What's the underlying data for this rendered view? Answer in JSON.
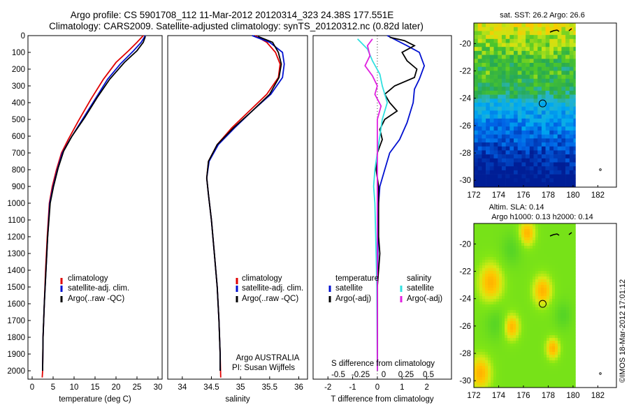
{
  "titles": {
    "line1": "Argo profile: CS 5901708_112 11-Mar-2012 20120314_323 24.38S 177.551E",
    "line2": "Climatology: CARS2009. Satellite-adjusted climatology: synTS_20120312.nc (0.82d later)"
  },
  "colors": {
    "climatology": "#e00000",
    "satellite": "#0010d0",
    "argo": "#000000",
    "salinity_satellite": "#30e0e0",
    "salinity_argo": "#e020e0"
  },
  "chart_data": [
    {
      "type": "line",
      "name": "temperature-profile",
      "xlabel": "temperature (deg C)",
      "ylim": [
        2050,
        0
      ],
      "xlim": [
        -1,
        31
      ],
      "xticks": [
        0,
        5,
        10,
        15,
        20,
        25,
        30
      ],
      "yticks": [
        0,
        100,
        200,
        300,
        400,
        500,
        600,
        700,
        800,
        900,
        1000,
        1100,
        1200,
        1300,
        1400,
        1500,
        1600,
        1700,
        1800,
        1900,
        2000
      ],
      "legend": [
        "climatology",
        "satellite-adj. clim.",
        "Argo(..raw -QC)"
      ],
      "legend_position": "lower-center",
      "series": [
        {
          "name": "climatology",
          "color": "#e00000",
          "points": [
            [
              26.5,
              0
            ],
            [
              25,
              40
            ],
            [
              23,
              90
            ],
            [
              20,
              160
            ],
            [
              17,
              260
            ],
            [
              14,
              380
            ],
            [
              11,
              510
            ],
            [
              8.6,
              620
            ],
            [
              7,
              700
            ],
            [
              5.8,
              800
            ],
            [
              4.8,
              900
            ],
            [
              4.1,
              1000
            ],
            [
              3.6,
              1200
            ],
            [
              3.2,
              1400
            ],
            [
              2.9,
              1600
            ],
            [
              2.6,
              1800
            ],
            [
              2.5,
              2000
            ],
            [
              2.4,
              2040
            ]
          ]
        },
        {
          "name": "satellite-adj. clim.",
          "color": "#0010d0",
          "points": [
            [
              27,
              0
            ],
            [
              26,
              40
            ],
            [
              24.2,
              90
            ],
            [
              21,
              170
            ],
            [
              18,
              260
            ],
            [
              15,
              380
            ],
            [
              12,
              500
            ],
            [
              9,
              620
            ],
            [
              7.2,
              700
            ],
            [
              6,
              800
            ],
            [
              5,
              900
            ],
            [
              4.2,
              1000
            ],
            [
              3.7,
              1200
            ],
            [
              3.3,
              1400
            ],
            [
              2.9,
              1600
            ],
            [
              2.6,
              1800
            ],
            [
              2.5,
              2000
            ]
          ]
        },
        {
          "name": "Argo(..raw -QC)",
          "color": "#000000",
          "points": [
            [
              27,
              5
            ],
            [
              26.5,
              40
            ],
            [
              25,
              90
            ],
            [
              22,
              160
            ],
            [
              18.5,
              260
            ],
            [
              15.5,
              370
            ],
            [
              12.5,
              490
            ],
            [
              9.5,
              600
            ],
            [
              7.5,
              690
            ],
            [
              6.2,
              790
            ],
            [
              5.1,
              900
            ],
            [
              4.3,
              1000
            ],
            [
              3.7,
              1200
            ],
            [
              3.3,
              1400
            ],
            [
              2.9,
              1600
            ],
            [
              2.6,
              1800
            ],
            [
              2.5,
              2000
            ]
          ]
        }
      ]
    },
    {
      "type": "line",
      "name": "salinity-profile",
      "xlabel": "salinity",
      "ylim": [
        2050,
        0
      ],
      "xlim": [
        33.75,
        36.15
      ],
      "xticks": [
        34,
        34.5,
        35,
        35.5,
        36
      ],
      "legend": [
        "climatology",
        "satellite-adj. clim.",
        "Argo(..raw -QC)"
      ],
      "legend_position": "lower-center",
      "annotation": [
        "Argo AUSTRALIA",
        "PI: Susan Wijffels"
      ],
      "series": [
        {
          "name": "climatology",
          "color": "#e00000",
          "points": [
            [
              35.25,
              0
            ],
            [
              35.45,
              40
            ],
            [
              35.6,
              100
            ],
            [
              35.68,
              170
            ],
            [
              35.65,
              250
            ],
            [
              35.45,
              350
            ],
            [
              35.15,
              450
            ],
            [
              34.85,
              550
            ],
            [
              34.6,
              650
            ],
            [
              34.45,
              750
            ],
            [
              34.42,
              850
            ],
            [
              34.45,
              950
            ],
            [
              34.5,
              1100
            ],
            [
              34.55,
              1300
            ],
            [
              34.6,
              1500
            ],
            [
              34.63,
              1700
            ],
            [
              34.65,
              1900
            ],
            [
              34.66,
              2040
            ]
          ]
        },
        {
          "name": "satellite-adj. clim.",
          "color": "#0010d0",
          "points": [
            [
              35.2,
              0
            ],
            [
              35.5,
              40
            ],
            [
              35.72,
              100
            ],
            [
              35.75,
              170
            ],
            [
              35.72,
              250
            ],
            [
              35.52,
              350
            ],
            [
              35.2,
              450
            ],
            [
              34.9,
              550
            ],
            [
              34.62,
              650
            ],
            [
              34.46,
              750
            ],
            [
              34.42,
              850
            ],
            [
              34.45,
              950
            ],
            [
              34.5,
              1100
            ],
            [
              34.55,
              1300
            ],
            [
              34.6,
              1500
            ],
            [
              34.63,
              1700
            ],
            [
              34.65,
              1900
            ],
            [
              34.65,
              2000
            ]
          ]
        },
        {
          "name": "Argo(..raw -QC)",
          "color": "#000000",
          "points": [
            [
              35.3,
              5
            ],
            [
              35.55,
              40
            ],
            [
              35.65,
              100
            ],
            [
              35.7,
              170
            ],
            [
              35.66,
              250
            ],
            [
              35.5,
              350
            ],
            [
              35.2,
              450
            ],
            [
              34.88,
              550
            ],
            [
              34.6,
              650
            ],
            [
              34.45,
              750
            ],
            [
              34.42,
              850
            ],
            [
              34.45,
              950
            ],
            [
              34.5,
              1100
            ],
            [
              34.55,
              1300
            ],
            [
              34.6,
              1500
            ],
            [
              34.63,
              1700
            ],
            [
              34.65,
              1900
            ],
            [
              34.65,
              2000
            ]
          ]
        }
      ]
    },
    {
      "type": "line",
      "name": "difference-profile",
      "xlabel": "T difference from climatology",
      "xlabel_top": "S difference from climatology",
      "ylim": [
        2050,
        0
      ],
      "xlim": [
        -2.6,
        3
      ],
      "xticks": [
        -2,
        -1,
        0,
        1,
        2
      ],
      "xticks_S_labels": [
        "-0.5",
        "-0.25",
        "0",
        "0.25",
        "0.5"
      ],
      "legend_titles": [
        "temperature",
        "salinity"
      ],
      "legend": [
        "satellite",
        "Argo(-adj)",
        "satellite",
        "Argo(-adj)"
      ],
      "legend_position": "lower-center",
      "series": [
        {
          "name": "T satellite",
          "color": "#0010d0",
          "points": [
            [
              0.4,
              0
            ],
            [
              1.2,
              60
            ],
            [
              1.7,
              100
            ],
            [
              1.9,
              180
            ],
            [
              1.7,
              260
            ],
            [
              1.5,
              320
            ],
            [
              1.45,
              400
            ],
            [
              1.2,
              520
            ],
            [
              0.9,
              620
            ],
            [
              0.5,
              700
            ],
            [
              0.3,
              800
            ],
            [
              0.1,
              900
            ],
            [
              0.05,
              1000
            ],
            [
              0.03,
              1200
            ],
            [
              0,
              1500
            ],
            [
              0,
              2000
            ]
          ]
        },
        {
          "name": "T Argo(-adj)",
          "color": "#000000",
          "points": [
            [
              0.5,
              10
            ],
            [
              1.1,
              30
            ],
            [
              1.5,
              60
            ],
            [
              1,
              100
            ],
            [
              1.2,
              150
            ],
            [
              1.6,
              200
            ],
            [
              1.5,
              250
            ],
            [
              0.7,
              300
            ],
            [
              0.3,
              350
            ],
            [
              0.5,
              400
            ],
            [
              0.8,
              450
            ],
            [
              0.3,
              500
            ],
            [
              0.1,
              560
            ],
            [
              0.2,
              620
            ],
            [
              0,
              700
            ],
            [
              -0.05,
              800
            ],
            [
              0.05,
              900
            ],
            [
              0.05,
              1000
            ],
            [
              0.05,
              1200
            ],
            [
              0.1,
              1300
            ],
            [
              0,
              1500
            ],
            [
              0,
              2000
            ]
          ]
        },
        {
          "name": "S satellite",
          "color": "#30e0e0",
          "points": [
            [
              -0.8,
              20
            ],
            [
              -0.4,
              80
            ],
            [
              -0.2,
              150
            ],
            [
              0.1,
              230
            ],
            [
              0.2,
              300
            ],
            [
              0.4,
              400
            ],
            [
              0.2,
              500
            ],
            [
              0.1,
              600
            ],
            [
              0,
              700
            ],
            [
              -0.1,
              800
            ],
            [
              -0.15,
              900
            ],
            [
              -0.1,
              1000
            ],
            [
              -0.05,
              1300
            ],
            [
              -0.02,
              1500
            ],
            [
              0,
              2000
            ]
          ]
        },
        {
          "name": "S Argo(-adj)",
          "color": "#e020e0",
          "points": [
            [
              -0.2,
              20
            ],
            [
              -0.4,
              60
            ],
            [
              -0.3,
              120
            ],
            [
              -0.5,
              180
            ],
            [
              -0.2,
              240
            ],
            [
              0,
              300
            ],
            [
              -0.1,
              350
            ],
            [
              0.15,
              420
            ],
            [
              0,
              500
            ],
            [
              0,
              600
            ],
            [
              0,
              2000
            ]
          ]
        }
      ]
    },
    {
      "type": "heatmap",
      "name": "sst-map",
      "title": "sat. SST: 26.2  Argo: 26.6",
      "xlim": [
        172,
        183.5
      ],
      "ylim": [
        -30.5,
        -18.5
      ],
      "xticks": [
        172,
        174,
        176,
        178,
        180,
        182
      ],
      "yticks": [
        -20,
        -22,
        -24,
        -26,
        -28,
        -30
      ],
      "marker": {
        "lon": 177.55,
        "lat": -24.38
      }
    },
    {
      "type": "heatmap",
      "name": "sla-map",
      "title_line1": "Altim. SLA: 0.14",
      "title_line2": "Argo h1000: 0.13 h2000: 0.14",
      "xlim": [
        172,
        183.5
      ],
      "ylim": [
        -30.5,
        -18.5
      ],
      "xticks": [
        172,
        174,
        176,
        178,
        180,
        182
      ],
      "yticks": [
        -20,
        -22,
        -24,
        -26,
        -28,
        -30
      ],
      "marker": {
        "lon": 177.55,
        "lat": -24.38
      }
    }
  ],
  "footer": {
    "stamp": "©IMOS 18-Mar-2012 17:01:12"
  }
}
